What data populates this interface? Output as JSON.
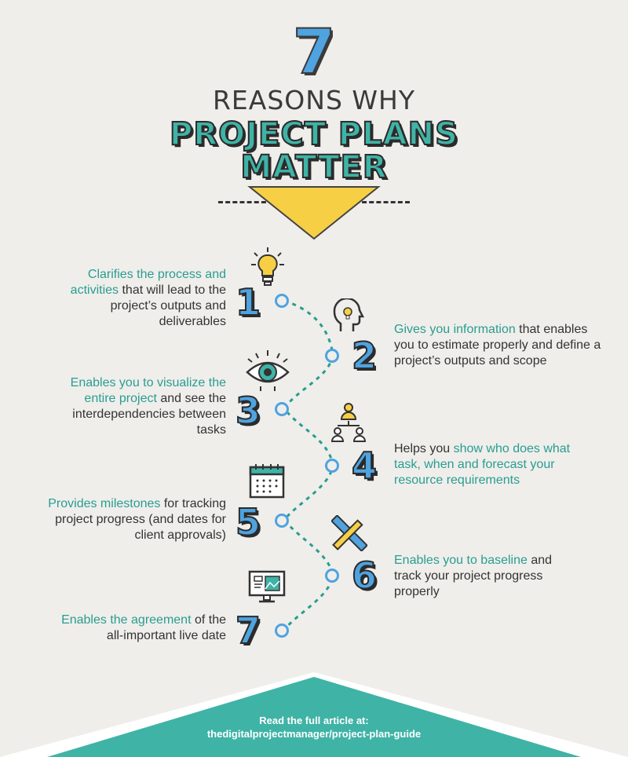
{
  "header": {
    "number": "7",
    "line1": "REASONS WHY",
    "line2a": "PROJECT PLANS",
    "line2b": "MATTER"
  },
  "colors": {
    "teal": "#3fb3a6",
    "blue": "#4fa3e0",
    "yellow": "#f6cf45",
    "dark": "#333333",
    "background": "#efeeeb"
  },
  "items": [
    {
      "number": "1",
      "icon": "lightbulb-icon",
      "hl": "Clarifies the process and activities",
      "rest": " that will lead to the project’s outputs and deliverables"
    },
    {
      "number": "2",
      "icon": "head-idea-icon",
      "hl": "Gives you information",
      "rest": " that enables you to estimate properly and define a project’s outputs and scope"
    },
    {
      "number": "3",
      "icon": "eye-icon",
      "hl": "Enables you to visualize the entire project",
      "rest": "  and see the interdependencies between tasks"
    },
    {
      "number": "4",
      "icon": "team-hierarchy-icon",
      "pre": "Helps you ",
      "hl": "show who does what task, when and forecast your resource requirements",
      "rest": ""
    },
    {
      "number": "5",
      "icon": "calendar-icon",
      "hl": "Provides milestones",
      "rest": " for tracking project progress (and dates for client approvals)"
    },
    {
      "number": "6",
      "icon": "ruler-pencil-icon",
      "hl": "Enables you to baseline",
      "rest": " and track your project progress properly"
    },
    {
      "number": "7",
      "icon": "monitor-icon",
      "hl": "Enables the agreement",
      "rest": " of the all-important live date"
    }
  ],
  "footer": {
    "line1": "Read the full article at:",
    "line2": "thedigitalprojectmanager/project-plan-guide"
  }
}
